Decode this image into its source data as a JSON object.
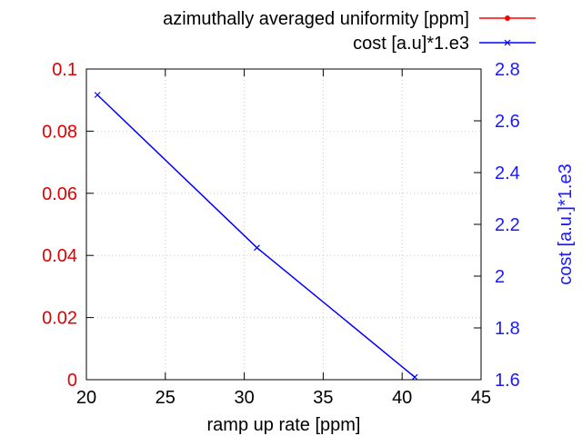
{
  "chart_data": {
    "type": "line",
    "xlabel": "ramp up rate [ppm]",
    "ylabel": "",
    "y2label": "cost [a.u.]*1.e3",
    "xlim": [
      20,
      45
    ],
    "ylim": [
      0,
      0.1
    ],
    "y2lim": [
      1.6,
      2.8
    ],
    "x_ticks": [
      "20",
      "25",
      "30",
      "35",
      "40",
      "45"
    ],
    "y_ticks": [
      "0",
      "0.02",
      "0.04",
      "0.06",
      "0.08",
      "0.1"
    ],
    "y2_ticks": [
      "1.6",
      "1.8",
      "2",
      "2.2",
      "2.4",
      "2.6",
      "2.8"
    ],
    "grid": true,
    "legend_position": "top-right",
    "series": [
      {
        "name": "azimuthally averaged uniformity [ppm]",
        "axis": "left",
        "color": "#ff0000",
        "marker": "dot",
        "x": [],
        "y": []
      },
      {
        "name": "cost [a.u]*1.e3",
        "axis": "right",
        "color": "#0000ff",
        "marker": "x",
        "x": [
          20.7,
          30.8,
          40.8
        ],
        "y": [
          2.7,
          2.11,
          1.61
        ]
      }
    ]
  }
}
